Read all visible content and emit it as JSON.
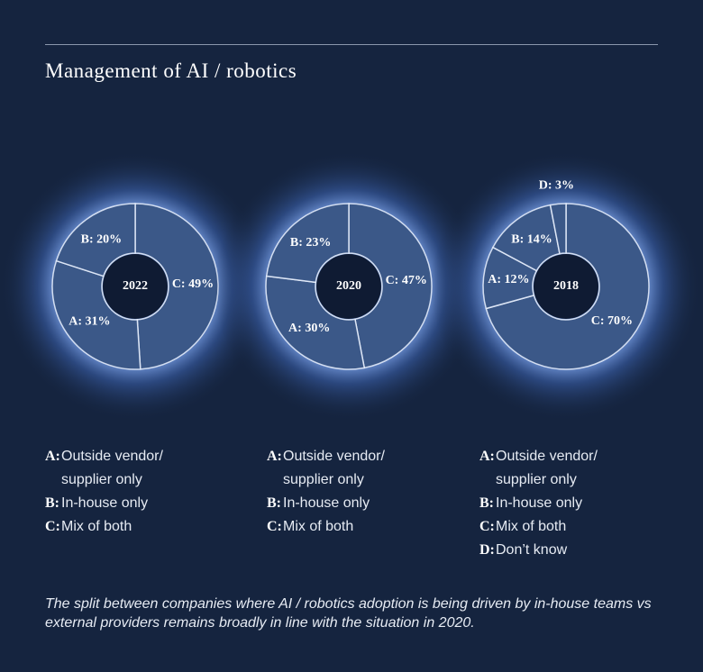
{
  "title": "Management of AI / robotics",
  "chart_data": [
    {
      "type": "pie",
      "title": "2022",
      "legend_keys": [
        "A:",
        "B:",
        "C:"
      ],
      "categories": [
        "Outside vendor/ supplier only",
        "In-house only",
        "Mix of both"
      ],
      "values": [
        31,
        20,
        49
      ],
      "value_labels": [
        "A: 31%",
        "B: 20%",
        "C: 49%"
      ]
    },
    {
      "type": "pie",
      "title": "2020",
      "legend_keys": [
        "A:",
        "B:",
        "C:"
      ],
      "categories": [
        "Outside vendor/ supplier only",
        "In-house only",
        "Mix of both"
      ],
      "values": [
        30,
        23,
        47
      ],
      "value_labels": [
        "A: 30%",
        "B: 23%",
        "C: 47%"
      ]
    },
    {
      "type": "pie",
      "title": "2018",
      "legend_keys": [
        "A:",
        "B:",
        "C:",
        "D:"
      ],
      "categories": [
        "Outside vendor/ supplier only",
        "In-house only",
        "Mix of both",
        "Don’t know"
      ],
      "values": [
        12,
        14,
        70,
        3
      ],
      "value_labels": [
        "A: 12%",
        "B: 14%",
        "C: 70%",
        "D: 3%"
      ]
    }
  ],
  "footnote": "The split between companies where AI / robotics adoption is being driven by in-house teams vs external providers remains broadly in line with the situation in 2020."
}
